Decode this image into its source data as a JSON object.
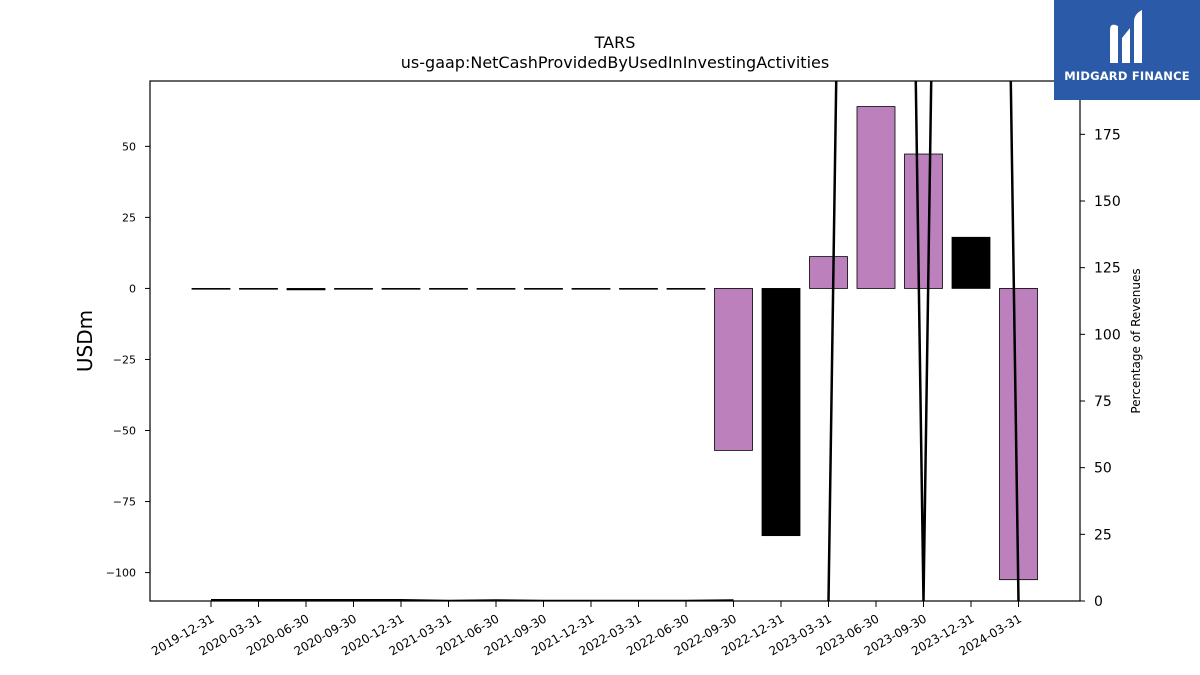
{
  "chart_data": {
    "type": "bar",
    "title": "TARS",
    "subtitle": "us-gaap:NetCashProvidedByUsedInInvestingActivities",
    "ylabel": "USDm",
    "y2label": "Percentage of Revenues",
    "categories": [
      "2019-12-31",
      "2020-03-31",
      "2020-06-30",
      "2020-09-30",
      "2020-12-31",
      "2021-03-31",
      "2021-06-30",
      "2021-09-30",
      "2021-12-31",
      "2022-03-31",
      "2022-06-30",
      "2022-09-30",
      "2022-12-31",
      "2023-03-31",
      "2023-06-30",
      "2023-09-30",
      "2023-12-31",
      "2024-03-31"
    ],
    "values": [
      0.0,
      0.0,
      -0.5,
      0.0,
      0.0,
      0.0,
      0.0,
      0.0,
      0.0,
      0.0,
      0.0,
      -57.0,
      -87.0,
      11.2,
      64.0,
      47.3,
      18.0,
      -102.5
    ],
    "bar_colors": [
      "#bc80bd",
      "#bc80bd",
      "#000000",
      "#bc80bd",
      "#bc80bd",
      "#bc80bd",
      "#bc80bd",
      "#bc80bd",
      "#bc80bd",
      "#bc80bd",
      "#bc80bd",
      "#bc80bd",
      "#000000",
      "#bc80bd",
      "#bc80bd",
      "#bc80bd",
      "#000000",
      "#bc80bd"
    ],
    "ylim": [
      -110,
      73
    ],
    "yticks": [
      -100,
      -75,
      -50,
      -25,
      0,
      25,
      50
    ],
    "pct_series": {
      "name": "Percentage of Revenues",
      "values": [
        0.3,
        0.3,
        0.3,
        0.3,
        0.3,
        0.0,
        0.2,
        0.0,
        0.0,
        0.0,
        0.0,
        0.2,
        null,
        0.0,
        1200,
        0.0,
        1200,
        0.0
      ]
    },
    "y2lim": [
      0,
      195
    ],
    "y2ticks": [
      0,
      25,
      50,
      75,
      100,
      125,
      150,
      175
    ]
  },
  "logo": {
    "text": "MIDGARD FINANCE",
    "bg_color": "#2b5ba8"
  }
}
